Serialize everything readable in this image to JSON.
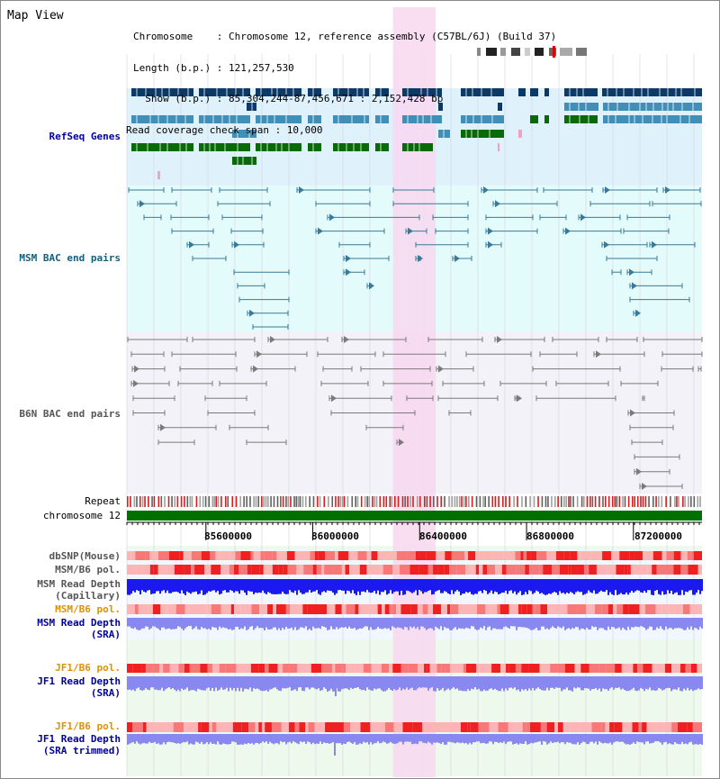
{
  "title": "Map View",
  "info": {
    "lines": [
      "Chromosome    : Chromosome 12, reference assembly (C57BL/6J) (Build 37)",
      "Length (b.p.) : 121,257,530",
      "  Show (b.p.) : 85,304,244-87,456,671 : 2,152,428 bp",
      "Read coverage check span : 10,000"
    ]
  },
  "view": {
    "start_bp": 85304244,
    "end_bp": 87456671,
    "highlight_start_bp": 86300000,
    "highlight_end_bp": 86460000
  },
  "ticks": [
    "85600000",
    "86000000",
    "86400000",
    "86800000",
    "87200000"
  ],
  "ticks_bp": [
    85600000,
    86000000,
    86400000,
    86800000,
    87200000
  ],
  "tracks": {
    "refseq": "RefSeq Genes",
    "msm_bac": "MSM BAC end pairs",
    "b6n_bac": "B6N BAC end pairs",
    "repeat": "Repeat",
    "chromosome": "chromosome 12",
    "dbsnp": "dbSNP(Mouse)",
    "msm_pol": "MSM/B6 pol.",
    "msm_depth_cap_1": "MSM Read Depth",
    "msm_depth_cap_2": "(Capillary)",
    "msm_pol_sra": "MSM/B6 pol.",
    "msm_depth_sra_1": "MSM Read Depth",
    "msm_depth_sra_2": "(SRA)",
    "jf1_pol": "JF1/B6 pol.",
    "jf1_depth_1": "JF1 Read Depth",
    "jf1_depth_2": "(SRA)",
    "jf1_pol_trim": "JF1/B6 pol.",
    "jf1_depth_trim_1": "JF1 Read Depth",
    "jf1_depth_trim_2": "(SRA trimmed)"
  },
  "colors": {
    "refseq_bg": "#dff1fb",
    "msm_bg": "#e4fbfb",
    "b6n_bg": "#f2f2f8",
    "highlight": "#f8d8f0",
    "gene_dark": "#0b3a6a",
    "gene_mid": "#3f8fb8",
    "gene_green": "#086a08",
    "chromosome_bar": "#007000",
    "depth_cap": "#1a1af0",
    "depth_sra": "#8888f0",
    "pol_red": "#f00000"
  }
}
